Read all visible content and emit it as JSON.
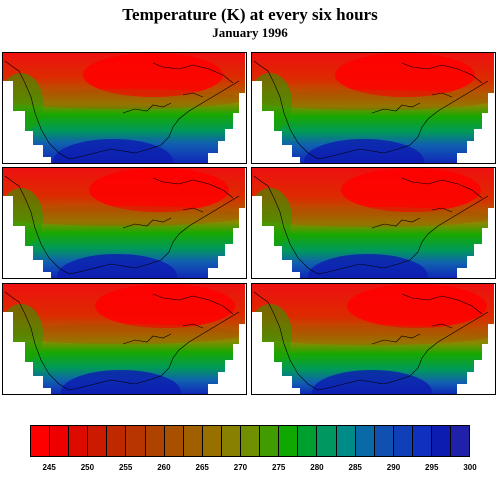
{
  "title": "Temperature (K) at every six hours",
  "subtitle": "January 1996",
  "panels": [
    {
      "id": "panel-1",
      "variant": 0
    },
    {
      "id": "panel-2",
      "variant": 1
    },
    {
      "id": "panel-3",
      "variant": 2
    },
    {
      "id": "panel-4",
      "variant": 3
    },
    {
      "id": "panel-5",
      "variant": 4
    },
    {
      "id": "panel-6",
      "variant": 5
    }
  ],
  "colorbar": {
    "colors": [
      "#ff0000",
      "#ee0000",
      "#dd0a00",
      "#cc1a00",
      "#c02800",
      "#b83400",
      "#b04200",
      "#a85000",
      "#a06000",
      "#987000",
      "#888000",
      "#709000",
      "#409c00",
      "#10a800",
      "#00a030",
      "#009860",
      "#008a88",
      "#0a6aa8",
      "#1050b0",
      "#1040b8",
      "#1030c0",
      "#0c1cb0",
      "#2020a8"
    ],
    "labels": [
      "245",
      "250",
      "255",
      "260",
      "265",
      "270",
      "275",
      "280",
      "285",
      "290",
      "295",
      "300"
    ]
  }
}
